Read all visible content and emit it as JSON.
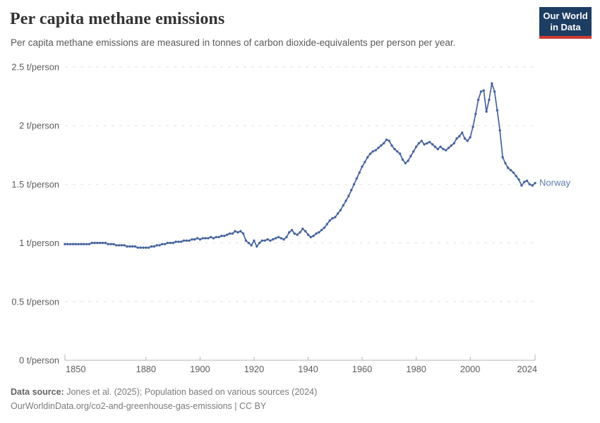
{
  "header": {
    "title": "Per capita methane emissions",
    "subtitle": "Per capita methane emissions are measured in tonnes of carbon dioxide-equivalents per person per year.",
    "logo": {
      "line1": "Our World",
      "line2": "in Data",
      "bg_color": "#1d3d63",
      "accent_color": "#cf3a31"
    }
  },
  "chart_data": {
    "type": "line",
    "title": "Per capita methane emissions",
    "unit": "t/person",
    "xlim": [
      1850,
      2024
    ],
    "ylim": [
      0,
      2.5
    ],
    "grid": "horizontal dashed",
    "legend_position": "end-of-line label",
    "x_ticks": [
      1850,
      1880,
      1900,
      1920,
      1940,
      1960,
      1980,
      2000,
      2024
    ],
    "x_tick_labels": [
      "1850",
      "1880",
      "1900",
      "1920",
      "1940",
      "1960",
      "1980",
      "2000",
      "2024"
    ],
    "y_ticks": [
      0,
      0.5,
      1,
      1.5,
      2,
      2.5
    ],
    "y_tick_labels": [
      "0 t/person",
      "0.5 t/person",
      "1 t/person",
      "1.5 t/person",
      "2 t/person",
      "2.5 t/person"
    ],
    "colors": {
      "line": "#46639f",
      "entity_label": "#5b7ca9",
      "gridline": "#e2e2e2",
      "axis": "#b3b3b3",
      "tick_text": "#5c5c5c"
    },
    "series": [
      {
        "name": "Norway",
        "x_start": 1850,
        "x_step": 1,
        "values": [
          0.99,
          0.99,
          0.99,
          0.99,
          0.99,
          0.99,
          0.99,
          0.99,
          0.99,
          0.99,
          1.0,
          1.0,
          1.0,
          1.0,
          1.0,
          1.0,
          0.99,
          0.99,
          0.99,
          0.98,
          0.98,
          0.98,
          0.98,
          0.97,
          0.97,
          0.97,
          0.97,
          0.96,
          0.96,
          0.96,
          0.96,
          0.96,
          0.97,
          0.97,
          0.98,
          0.98,
          0.99,
          0.99,
          1.0,
          1.0,
          1.0,
          1.01,
          1.01,
          1.01,
          1.02,
          1.02,
          1.02,
          1.03,
          1.03,
          1.04,
          1.03,
          1.04,
          1.04,
          1.04,
          1.05,
          1.04,
          1.05,
          1.05,
          1.06,
          1.06,
          1.07,
          1.08,
          1.08,
          1.1,
          1.09,
          1.1,
          1.08,
          1.02,
          1.0,
          0.98,
          1.02,
          0.97,
          1.0,
          1.02,
          1.02,
          1.03,
          1.02,
          1.03,
          1.04,
          1.05,
          1.04,
          1.03,
          1.05,
          1.09,
          1.11,
          1.08,
          1.07,
          1.09,
          1.12,
          1.1,
          1.07,
          1.05,
          1.06,
          1.08,
          1.09,
          1.11,
          1.13,
          1.16,
          1.19,
          1.21,
          1.22,
          1.25,
          1.28,
          1.32,
          1.36,
          1.4,
          1.45,
          1.5,
          1.55,
          1.6,
          1.65,
          1.69,
          1.73,
          1.76,
          1.78,
          1.79,
          1.81,
          1.83,
          1.85,
          1.88,
          1.87,
          1.83,
          1.8,
          1.78,
          1.76,
          1.71,
          1.68,
          1.7,
          1.74,
          1.78,
          1.82,
          1.85,
          1.87,
          1.84,
          1.85,
          1.86,
          1.84,
          1.82,
          1.8,
          1.82,
          1.8,
          1.79,
          1.81,
          1.83,
          1.85,
          1.89,
          1.91,
          1.94,
          1.89,
          1.87,
          1.9,
          1.99,
          2.1,
          2.22,
          2.29,
          2.3,
          2.12,
          2.22,
          2.36,
          2.29,
          2.13,
          1.96,
          1.73,
          1.68,
          1.64,
          1.62,
          1.6,
          1.57,
          1.54,
          1.49,
          1.52,
          1.53,
          1.5,
          1.49,
          1.51
        ]
      }
    ]
  },
  "footer": {
    "source_label": "Data source:",
    "source_text": "Jones et al. (2025); Population based on various sources (2024)",
    "url_text": "OurWorldinData.org/co2-and-greenhouse-gas-emissions",
    "license_text": " | CC BY"
  }
}
